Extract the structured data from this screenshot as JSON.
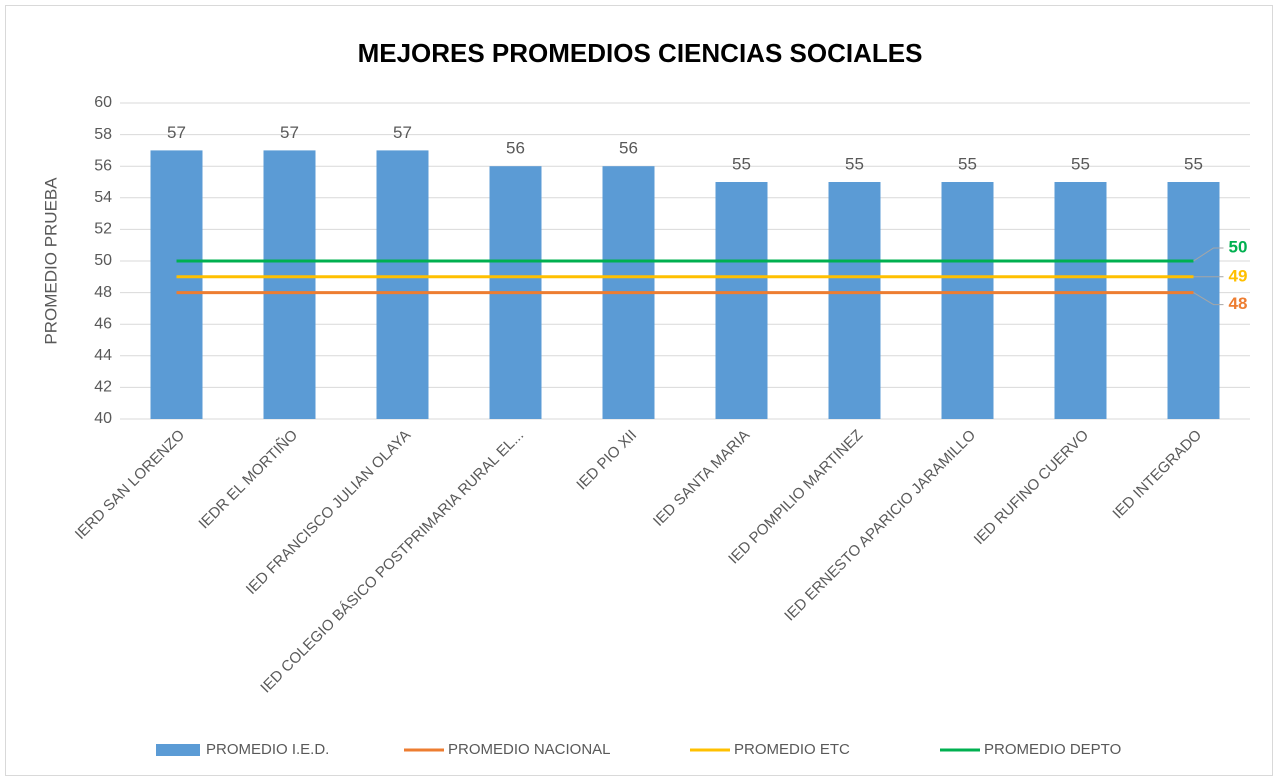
{
  "chart_data": {
    "type": "bar",
    "title": "MEJORES PROMEDIOS CIENCIAS SOCIALES",
    "y_label": "PROMEDIO PRUEBA",
    "categories": [
      "IERD SAN LORENZO",
      "IEDR EL MORTIÑO",
      "IED FRANCISCO JULIAN OLAYA",
      "IED COLEGIO BÁSICO POSTPRIMARIA RURAL EL...",
      "IED PIO XII",
      "IED SANTA MARIA",
      "IED POMPILIO MARTINEZ",
      "IED ERNESTO APARICIO JARAMILLO",
      "IED RUFINO CUERVO",
      "IED INTEGRADO"
    ],
    "series": [
      {
        "name": "PROMEDIO I.E.D.",
        "type": "bar",
        "color": "#5b9bd5",
        "values": [
          57,
          57,
          57,
          56,
          56,
          55,
          55,
          55,
          55,
          55
        ]
      },
      {
        "name": "PROMEDIO NACIONAL",
        "type": "line",
        "color": "#ed7d31",
        "values": [
          48,
          48,
          48,
          48,
          48,
          48,
          48,
          48,
          48,
          48
        ]
      },
      {
        "name": "PROMEDIO ETC",
        "type": "line",
        "color": "#ffc000",
        "values": [
          49,
          49,
          49,
          49,
          49,
          49,
          49,
          49,
          49,
          49
        ]
      },
      {
        "name": "PROMEDIO DEPTO",
        "type": "line",
        "color": "#00b050",
        "values": [
          50,
          50,
          50,
          50,
          50,
          50,
          50,
          50,
          50,
          50
        ]
      }
    ],
    "ylim": [
      40,
      60
    ],
    "yticks": [
      40,
      42,
      44,
      46,
      48,
      50,
      52,
      54,
      56,
      58,
      60
    ],
    "grid": true,
    "legend": "bottom"
  }
}
